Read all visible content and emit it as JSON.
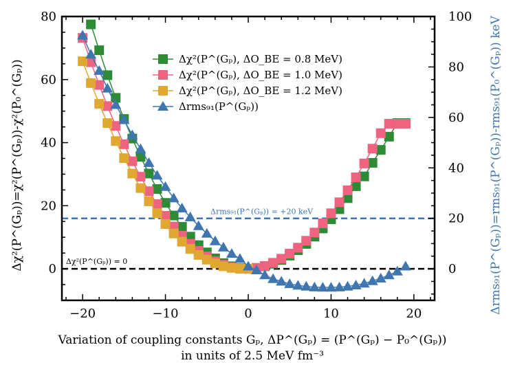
{
  "chart_data": {
    "type": "line",
    "xlabel_line1": "Variation of coupling constants Gₚ, ΔP^(Gₚ) = (P^(Gₚ) − P₀^(Gₚ))",
    "xlabel_line2": "in units of 2.5 MeV fm⁻³",
    "ylabel_left": "Δχ²(P^(Gₚ))=χ²(P^(Gₚ))-χ²(P₀^(Gₚ))",
    "ylabel_right": "Δrms₉₁(P^(Gₚ))=rms₉₁(P^(Gₚ))-rms₉₁(P₀^(Gₚ)) keV",
    "xlim": [
      -22.5,
      22.5
    ],
    "ylim_left": [
      -10,
      80
    ],
    "ylim_right": [
      -12.5,
      100
    ],
    "xticks": [
      -20,
      -10,
      0,
      10,
      20
    ],
    "yticks_left": [
      0,
      20,
      40,
      60,
      80
    ],
    "yticks_right": [
      0,
      20,
      40,
      60,
      80,
      100
    ],
    "hlines": [
      {
        "y_left": 0,
        "color": "#000000",
        "label": "Δχ²(P^(Gₚ)) = 0"
      },
      {
        "y_right": 20,
        "color": "#3f76b0",
        "label": "Δrms₉₁(P^(Gₚ)) = +20 keV"
      }
    ],
    "series": [
      {
        "name": "Δχ²(P^(Gₚ), ΔO_BE = 0.8 MeV)",
        "axis": "left",
        "marker": "square",
        "color": "#2e8b35",
        "x": [
          -19,
          -18,
          -17,
          -16,
          -15,
          -14,
          -13,
          -12,
          -11,
          -10,
          -9,
          -8,
          -7,
          -6,
          -5,
          -4,
          -3,
          -2,
          -1,
          0,
          1,
          2,
          3,
          4,
          5,
          6,
          7,
          8,
          9,
          10,
          11,
          12,
          13,
          14,
          15,
          16,
          17,
          18,
          19
        ],
        "y": [
          77.5,
          69.3,
          61.4,
          54.2,
          47.5,
          41.3,
          35.5,
          30.2,
          25.3,
          20.9,
          16.9,
          13.3,
          10.2,
          7.5,
          5.2,
          3.3,
          1.8,
          0.8,
          0.2,
          0.0,
          0.2,
          0.8,
          1.6,
          2.8,
          4.2,
          5.9,
          7.9,
          10.2,
          12.8,
          15.7,
          18.9,
          22.4,
          26.2,
          29.3,
          33.6,
          37.7,
          41.9,
          46.2,
          46.2
        ]
      },
      {
        "name": "Δχ²(P^(Gₚ), ΔO_BE = 1.0 MeV)",
        "axis": "left",
        "marker": "square",
        "color": "#ee6380",
        "x": [
          -20,
          -19,
          -18,
          -17,
          -16,
          -15,
          -14,
          -13,
          -12,
          -11,
          -10,
          -9,
          -8,
          -7,
          -6,
          -5,
          -4,
          -3,
          -2,
          -1,
          0,
          1,
          2,
          3,
          4,
          5,
          6,
          7,
          8,
          9,
          10,
          11,
          12,
          13,
          14,
          15,
          16,
          17,
          18,
          19
        ],
        "y": [
          73.2,
          65.5,
          58.3,
          51.6,
          45.3,
          39.5,
          34.1,
          29.2,
          24.6,
          20.5,
          16.8,
          13.4,
          10.5,
          7.9,
          5.7,
          3.9,
          2.4,
          1.3,
          0.5,
          0.1,
          0.0,
          0.3,
          0.9,
          1.9,
          3.2,
          4.8,
          6.7,
          8.9,
          11.5,
          14.4,
          17.6,
          21.1,
          24.9,
          29.0,
          33.4,
          38.1,
          43.0,
          46.0,
          46.0,
          46.0
        ]
      },
      {
        "name": "Δχ²(P^(Gₚ), ΔO_BE = 1.2 MeV)",
        "axis": "left",
        "marker": "square",
        "color": "#e0a830",
        "x": [
          -20,
          -19,
          -18,
          -17,
          -16,
          -15,
          -14,
          -13,
          -12,
          -11,
          -10,
          -9,
          -8,
          -7,
          -6,
          -5,
          -4,
          -3,
          -2,
          -1,
          0
        ],
        "y": [
          65.8,
          58.9,
          52.3,
          46.2,
          40.5,
          35.1,
          30.2,
          25.6,
          21.4,
          17.6,
          14.2,
          11.2,
          8.6,
          6.3,
          4.4,
          2.9,
          1.7,
          0.8,
          0.3,
          0.0,
          0.0
        ]
      },
      {
        "name": "Δrms₉₁(P^(Gₚ))",
        "axis": "right",
        "marker": "triangle",
        "color": "#3f76b0",
        "x": [
          -20,
          -19,
          -18,
          -17,
          -16,
          -15,
          -14,
          -13,
          -12,
          -11,
          -10,
          -9,
          -8,
          -7,
          -6,
          -5,
          -4,
          -3,
          -2,
          -1,
          0,
          1,
          2,
          3,
          4,
          5,
          6,
          7,
          8,
          9,
          10,
          11,
          12,
          13,
          14,
          15,
          16,
          17,
          18,
          19
        ],
        "y": [
          92.5,
          85.0,
          78.5,
          71.5,
          65.0,
          59.0,
          53.0,
          47.5,
          42.0,
          37.0,
          32.5,
          28.0,
          24.0,
          20.5,
          17.0,
          14.0,
          11.0,
          8.5,
          6.0,
          4.0,
          1.0,
          -0.5,
          -2.5,
          -4.0,
          -5.0,
          -6.0,
          -6.6,
          -7.0,
          -7.3,
          -7.4,
          -7.4,
          -7.3,
          -7.0,
          -6.5,
          -5.8,
          -4.8,
          -3.8,
          -2.5,
          -1.0,
          1.0
        ]
      }
    ],
    "legend": {
      "position": "upper-center"
    },
    "grid": false
  }
}
